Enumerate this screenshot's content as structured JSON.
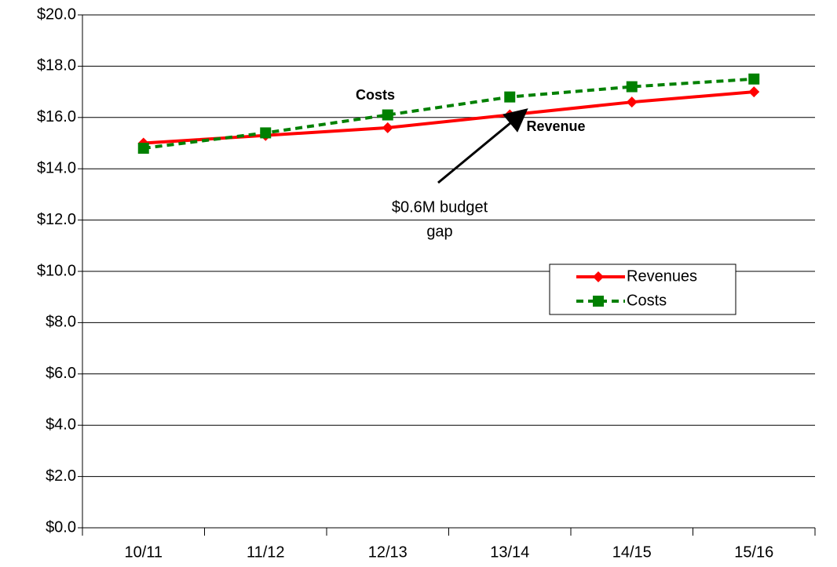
{
  "chart_data": {
    "type": "line",
    "categories": [
      "10/11",
      "11/12",
      "12/13",
      "13/14",
      "14/15",
      "15/16"
    ],
    "series": [
      {
        "name": "Revenues",
        "color": "#ff0000",
        "values": [
          15.0,
          15.3,
          15.6,
          16.1,
          16.6,
          17.0
        ]
      },
      {
        "name": "Costs",
        "color": "#008000",
        "values": [
          14.8,
          15.4,
          16.1,
          16.8,
          17.2,
          17.5
        ]
      }
    ],
    "ylim": [
      0,
      20
    ],
    "yticks": [
      {
        "value": 0,
        "label": "$0.0"
      },
      {
        "value": 2,
        "label": "$2.0"
      },
      {
        "value": 4,
        "label": "$4.0"
      },
      {
        "value": 6,
        "label": "$6.0"
      },
      {
        "value": 8,
        "label": "$8.0"
      },
      {
        "value": 10,
        "label": "$10.0"
      },
      {
        "value": 12,
        "label": "$12.0"
      },
      {
        "value": 14,
        "label": "$14.0"
      },
      {
        "value": 16,
        "label": "$16.0"
      },
      {
        "value": 18,
        "label": "$18.0"
      },
      {
        "value": 20,
        "label": "$20.0"
      }
    ],
    "grid": true,
    "legend": "center right",
    "annotations": [
      {
        "text": "Costs"
      },
      {
        "text": "Revenue"
      },
      {
        "text": [
          "$0.6M budget",
          "gap"
        ]
      }
    ]
  }
}
